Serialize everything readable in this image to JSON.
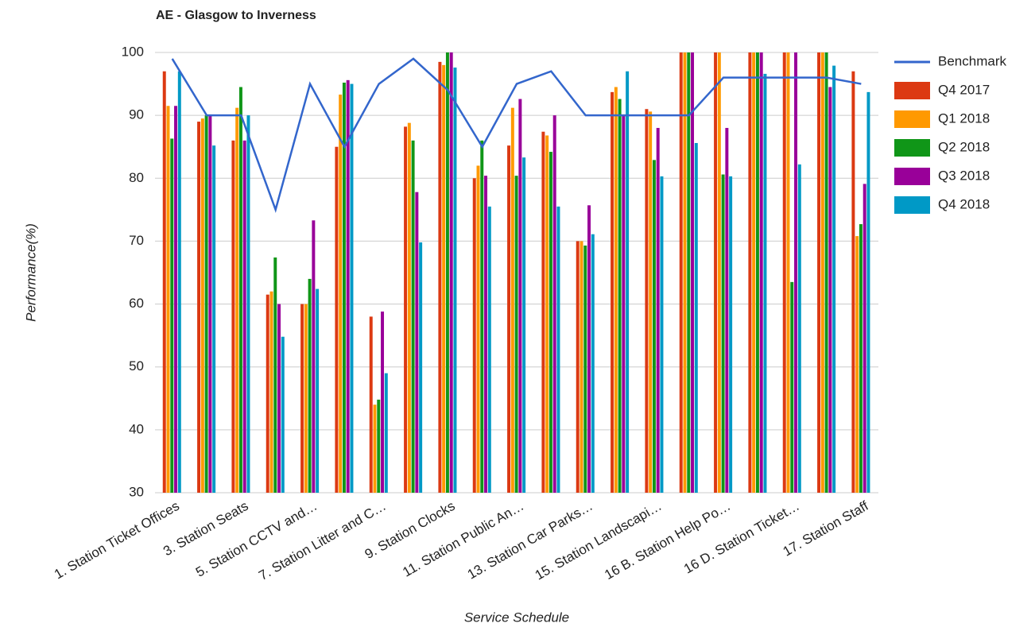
{
  "chart_data": {
    "type": "bar_line",
    "title": "AE - Glasgow to Inverness",
    "xlabel": "Service Schedule",
    "ylabel": "Performance(%)",
    "categories": [
      "1. Station Ticket Offices",
      null,
      "3. Station Seats",
      null,
      "5. Station CCTV and…",
      null,
      "7. Station Litter and C…",
      null,
      "9. Station Clocks",
      null,
      "11. Station Public An…",
      null,
      "13. Station Car Parks…",
      null,
      "15. Station Landscapi…",
      null,
      "16 B. Station Help Po…",
      null,
      "16 D. Station Ticket…",
      null,
      "17. Station Staff"
    ],
    "ylim": [
      30,
      100
    ],
    "yticks": [
      30,
      40,
      50,
      60,
      70,
      80,
      90,
      100
    ],
    "grid": true,
    "legend": "right",
    "series": [
      {
        "name": "Benchmark",
        "type": "line",
        "color": "#3366cc",
        "values": [
          99,
          90,
          90,
          75,
          95,
          85,
          95,
          99,
          94,
          85,
          95,
          97,
          90,
          90,
          90,
          90,
          96,
          96,
          96,
          96,
          95
        ]
      },
      {
        "name": "Q4 2017",
        "type": "bar",
        "color": "#dc3912",
        "values": [
          97,
          89,
          86,
          61.5,
          60,
          85,
          58,
          88.2,
          98.5,
          80,
          85.2,
          87.4,
          70,
          93.7,
          91,
          100,
          100,
          100,
          100,
          100,
          97
        ]
      },
      {
        "name": "Q1 2018",
        "type": "bar",
        "color": "#ff9900",
        "values": [
          91.5,
          89.5,
          91.2,
          62,
          60,
          93.3,
          44,
          88.8,
          98,
          82,
          91.2,
          86.8,
          70,
          94.5,
          90.6,
          100,
          100,
          100,
          100,
          100,
          70.8
        ]
      },
      {
        "name": "Q2 2018",
        "type": "bar",
        "color": "#109618",
        "values": [
          86.3,
          90,
          94.5,
          67.4,
          64,
          95.2,
          44.8,
          86,
          100,
          86,
          80.4,
          84.2,
          69.3,
          92.6,
          82.9,
          100,
          80.6,
          100,
          63.5,
          100,
          72.7
        ]
      },
      {
        "name": "Q3 2018",
        "type": "bar",
        "color": "#990099",
        "values": [
          91.5,
          90,
          86,
          60,
          73.3,
          95.6,
          58.8,
          77.8,
          100,
          80.4,
          92.6,
          90,
          75.7,
          90,
          88,
          100,
          88,
          100,
          100,
          94.5,
          79.1
        ]
      },
      {
        "name": "Q4 2018",
        "type": "bar",
        "color": "#0099c6",
        "values": [
          97,
          85.2,
          90,
          54.8,
          62.4,
          95,
          49,
          69.8,
          97.6,
          75.5,
          83.3,
          75.5,
          71.1,
          97,
          80.3,
          85.6,
          80.3,
          96.6,
          82.2,
          97.9,
          93.7
        ]
      }
    ]
  }
}
